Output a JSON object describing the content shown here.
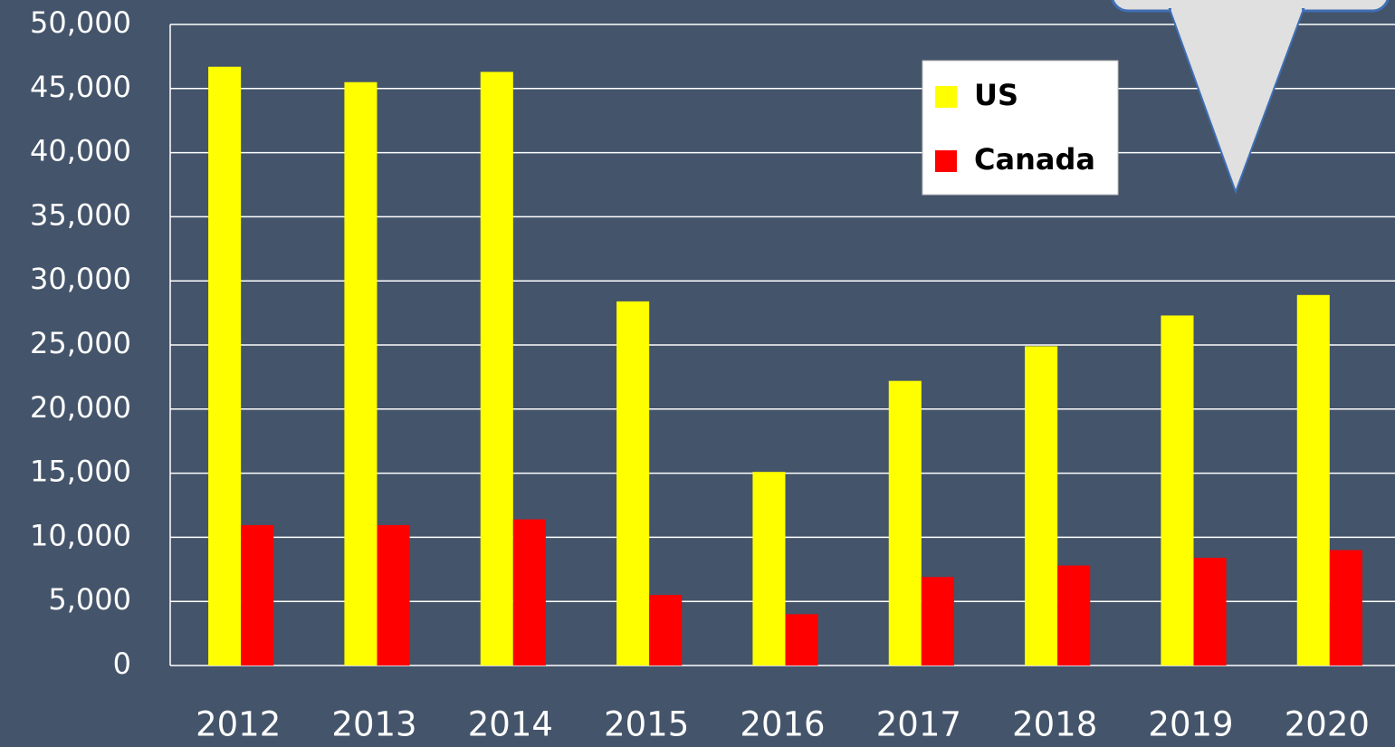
{
  "chart_data": {
    "type": "bar",
    "categories": [
      "2012",
      "2013",
      "2014",
      "2015",
      "2016",
      "2017",
      "2018",
      "2019",
      "2020"
    ],
    "series": [
      {
        "name": "US",
        "color": "#ffff00",
        "values": [
          46700,
          45500,
          46300,
          28400,
          15100,
          22200,
          24900,
          27300,
          28900
        ]
      },
      {
        "name": "Canada",
        "color": "#ff0000",
        "values": [
          10950,
          10950,
          11400,
          5500,
          4000,
          6900,
          7800,
          8400,
          9000
        ]
      }
    ],
    "ylim": [
      0,
      50000
    ],
    "yticks": [
      0,
      {
        "value": 5000,
        "label": "5,000"
      },
      {
        "value": 10000,
        "label": "10,000"
      },
      {
        "value": 15000,
        "label": "15,000"
      },
      {
        "value": 20000,
        "label": "20,000"
      },
      {
        "value": 25000,
        "label": "25,000"
      },
      {
        "value": 30000,
        "label": "30,000"
      },
      {
        "value": 35000,
        "label": "35,000"
      },
      {
        "value": 40000,
        "label": "40,000"
      },
      {
        "value": 45000,
        "label": "45,000"
      },
      {
        "value": 50000,
        "label": "50,000"
      }
    ],
    "grid": true
  }
}
